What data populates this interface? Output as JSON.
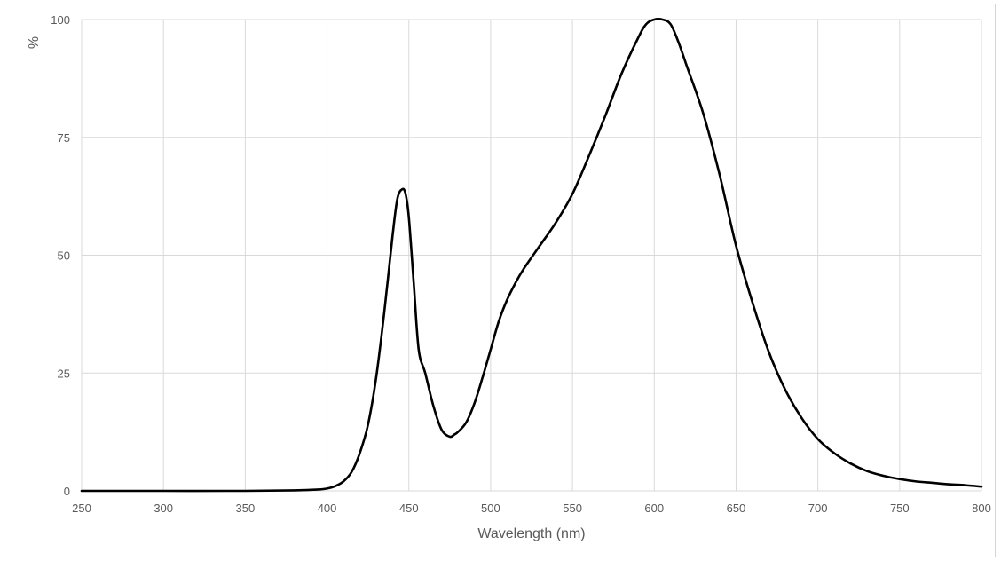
{
  "chart_data": {
    "type": "line",
    "title": "",
    "xlabel": "Wavelength (nm)",
    "ylabel": "%",
    "xlim": [
      250,
      800
    ],
    "ylim": [
      0,
      100
    ],
    "x_ticks": [
      "250",
      "300",
      "350",
      "400",
      "450",
      "500",
      "550",
      "600",
      "650",
      "700",
      "750",
      "800"
    ],
    "y_ticks": [
      "0",
      "25",
      "50",
      "75",
      "100"
    ],
    "grid": true,
    "legend": "none",
    "series": [
      {
        "color": "#000000",
        "x": [
          250,
          300,
          350,
          380,
          395,
          400,
          405,
          410,
          415,
          420,
          425,
          430,
          435,
          440,
          443,
          446,
          448,
          450,
          453,
          456,
          460,
          465,
          470,
          475,
          478,
          480,
          485,
          490,
          495,
          500,
          505,
          510,
          515,
          520,
          530,
          540,
          550,
          560,
          570,
          580,
          590,
          595,
          600,
          605,
          610,
          615,
          620,
          630,
          640,
          650,
          660,
          670,
          680,
          690,
          700,
          710,
          720,
          730,
          740,
          750,
          760,
          770,
          780,
          790,
          800
        ],
        "y": [
          0,
          0,
          0,
          0.1,
          0.3,
          0.5,
          1.0,
          2.0,
          4.0,
          8.0,
          14.0,
          24.0,
          38.0,
          54.0,
          62.0,
          64.0,
          63.0,
          58.0,
          44.0,
          30.0,
          25.0,
          18.0,
          13.0,
          11.5,
          12.0,
          12.5,
          14.5,
          18.5,
          24.0,
          30.0,
          36.0,
          40.5,
          44.0,
          47.0,
          52.0,
          57.0,
          63.0,
          71.0,
          79.5,
          88.5,
          96.0,
          99.0,
          100.0,
          100.0,
          99.0,
          95.0,
          90.0,
          80.0,
          67.0,
          52.0,
          40.0,
          29.5,
          21.5,
          15.5,
          11.0,
          8.0,
          5.8,
          4.2,
          3.2,
          2.5,
          2.0,
          1.7,
          1.4,
          1.2,
          0.9
        ]
      }
    ]
  }
}
